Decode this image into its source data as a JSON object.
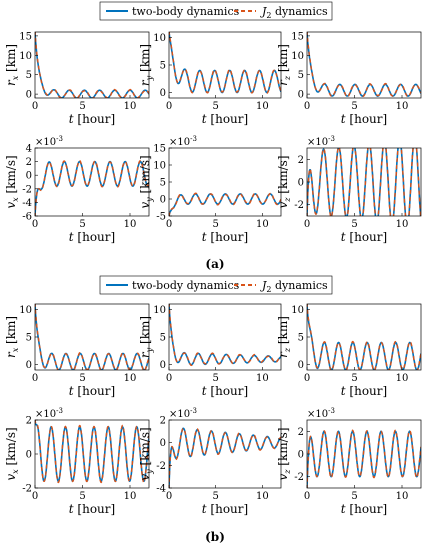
{
  "colors": {
    "two_body": "#0072BD",
    "j2": "#D95319"
  },
  "chart_data": [
    {
      "group": "(a)",
      "type": "line",
      "legend": {
        "position": "top",
        "entries": [
          "two-body dynamics",
          "J2 dynamics"
        ]
      },
      "panels": [
        {
          "id": "a-rx",
          "xlabel": "t [hour]",
          "ylabel": "r_x [km]",
          "xlim": [
            0,
            12
          ],
          "ylim": [
            -1,
            16
          ],
          "xticks": [
            "0",
            "5",
            "10"
          ],
          "yticks": [
            "0",
            "5",
            "10",
            "15"
          ],
          "exponent": "",
          "signal": {
            "start": 16,
            "settle": 0.4,
            "amp": 1.0,
            "period": 1.6,
            "phase": 0,
            "growth": 0,
            "offset": 0
          }
        },
        {
          "id": "a-ry",
          "xlabel": "t [hour]",
          "ylabel": "r_y [km]",
          "xlim": [
            0,
            12
          ],
          "ylim": [
            -1,
            11
          ],
          "xticks": [
            "0",
            "5",
            "10"
          ],
          "yticks": [
            "0",
            "5",
            "10"
          ],
          "exponent": "",
          "signal": {
            "start": 11,
            "settle": 0.5,
            "amp": 2.0,
            "period": 1.6,
            "phase": 1.2,
            "growth": 0,
            "offset": 2
          }
        },
        {
          "id": "a-rz",
          "xlabel": "t [hour]",
          "ylabel": "r_z [km]",
          "xlim": [
            0,
            12
          ],
          "ylim": [
            -1,
            16
          ],
          "xticks": [
            "0",
            "5",
            "10"
          ],
          "yticks": [
            "0",
            "5",
            "10",
            "15"
          ],
          "exponent": "",
          "signal": {
            "start": 16,
            "settle": 0.4,
            "amp": 1.5,
            "period": 1.6,
            "phase": 0.6,
            "growth": 0,
            "offset": 1
          }
        },
        {
          "id": "a-vx",
          "xlabel": "t [hour]",
          "ylabel": "v_x [km/s]",
          "xlim": [
            0,
            12
          ],
          "ylim": [
            -6,
            4
          ],
          "xticks": [
            "0",
            "5",
            "10"
          ],
          "yticks": [
            "-6",
            "-4",
            "-2",
            "0",
            "2",
            "4"
          ],
          "exponent": "×10^-3",
          "signal": {
            "start": -6,
            "settle": 0.3,
            "amp": 1.8,
            "period": 1.6,
            "phase": 2.0,
            "growth": 0,
            "offset": 0.2
          }
        },
        {
          "id": "a-vy",
          "xlabel": "t [hour]",
          "ylabel": "v_y [km/s]",
          "xlim": [
            0,
            12
          ],
          "ylim": [
            -5,
            15
          ],
          "xticks": [
            "0",
            "5",
            "10"
          ],
          "yticks": [
            "-5",
            "0",
            "5",
            "10",
            "15"
          ],
          "exponent": "×10^-3",
          "signal": {
            "start": -5,
            "settle": 0.4,
            "amp": 1.5,
            "period": 1.6,
            "phase": 3.0,
            "growth": 0,
            "offset": 0
          }
        },
        {
          "id": "a-vz",
          "xlabel": "t [hour]",
          "ylabel": "v_z [km/s]",
          "xlim": [
            0,
            12
          ],
          "ylim": [
            -3,
            3
          ],
          "xticks": [
            "0",
            "5",
            "10"
          ],
          "yticks": [
            "-2",
            "0",
            "2"
          ],
          "exponent": "×10^-3",
          "signal": {
            "start": -3,
            "settle": 0.2,
            "amp": 2.7,
            "period": 1.6,
            "phase": 1.0,
            "growth": 0.5,
            "offset": 0
          }
        }
      ]
    },
    {
      "group": "(b)",
      "type": "line",
      "legend": {
        "position": "top",
        "entries": [
          "two-body dynamics",
          "J2 dynamics"
        ]
      },
      "panels": [
        {
          "id": "b-rx",
          "xlabel": "t [hour]",
          "ylabel": "r_x [km]",
          "xlim": [
            0,
            12
          ],
          "ylim": [
            -1,
            11
          ],
          "xticks": [
            "0",
            "5",
            "10"
          ],
          "yticks": [
            "0",
            "5",
            "10"
          ],
          "exponent": "",
          "signal": {
            "start": 11,
            "settle": 0.3,
            "amp": 1.5,
            "period": 1.5,
            "phase": 0.5,
            "growth": 0,
            "offset": 0.5
          }
        },
        {
          "id": "b-ry",
          "xlabel": "t [hour]",
          "ylabel": "r_y [km]",
          "xlim": [
            0,
            12
          ],
          "ylim": [
            -1,
            11
          ],
          "xticks": [
            "0",
            "5",
            "10"
          ],
          "yticks": [
            "0",
            "5",
            "10"
          ],
          "exponent": "",
          "signal": {
            "start": 11,
            "settle": 0.3,
            "amp": 1.2,
            "period": 1.5,
            "phase": 1.0,
            "growth": -0.6,
            "offset": 1
          }
        },
        {
          "id": "b-rz",
          "xlabel": "t [hour]",
          "ylabel": "r_z [km]",
          "xlim": [
            0,
            12
          ],
          "ylim": [
            -1,
            11
          ],
          "xticks": [
            "0",
            "5",
            "10"
          ],
          "yticks": [
            "0",
            "5",
            "10"
          ],
          "exponent": "",
          "signal": {
            "start": 11,
            "settle": 0.3,
            "amp": 2.5,
            "period": 1.5,
            "phase": 0.2,
            "growth": 0,
            "offset": 1.5
          }
        },
        {
          "id": "b-vx",
          "xlabel": "t [hour]",
          "ylabel": "v_x [km/s]",
          "xlim": [
            0,
            12
          ],
          "ylim": [
            -2,
            2
          ],
          "xticks": [
            "0",
            "5",
            "10"
          ],
          "yticks": [
            "-2",
            "0",
            "2"
          ],
          "exponent": "×10^-3",
          "signal": {
            "start": 2,
            "settle": 0.15,
            "amp": 1.6,
            "period": 1.5,
            "phase": 0.7,
            "growth": 0,
            "offset": 0
          }
        },
        {
          "id": "b-vy",
          "xlabel": "t [hour]",
          "ylabel": "v_y [km/s]",
          "xlim": [
            0,
            12
          ],
          "ylim": [
            -4,
            2
          ],
          "xticks": [
            "0",
            "5",
            "10"
          ],
          "yticks": [
            "-4",
            "-2",
            "0",
            "2"
          ],
          "exponent": "×10^-3",
          "signal": {
            "start": -4,
            "settle": 0.2,
            "amp": 1.4,
            "period": 1.5,
            "phase": 1.4,
            "growth": -0.7,
            "offset": 0
          }
        },
        {
          "id": "b-vz",
          "xlabel": "t [hour]",
          "ylabel": "v_z [km/s]",
          "xlim": [
            0,
            12
          ],
          "ylim": [
            -3,
            3
          ],
          "xticks": [
            "0",
            "5",
            "10"
          ],
          "yticks": [
            "-2",
            "0",
            "2"
          ],
          "exponent": "×10^-3",
          "signal": {
            "start": -3,
            "settle": 0.15,
            "amp": 2.0,
            "period": 1.5,
            "phase": 0.3,
            "growth": 0,
            "offset": 0
          }
        }
      ]
    }
  ]
}
